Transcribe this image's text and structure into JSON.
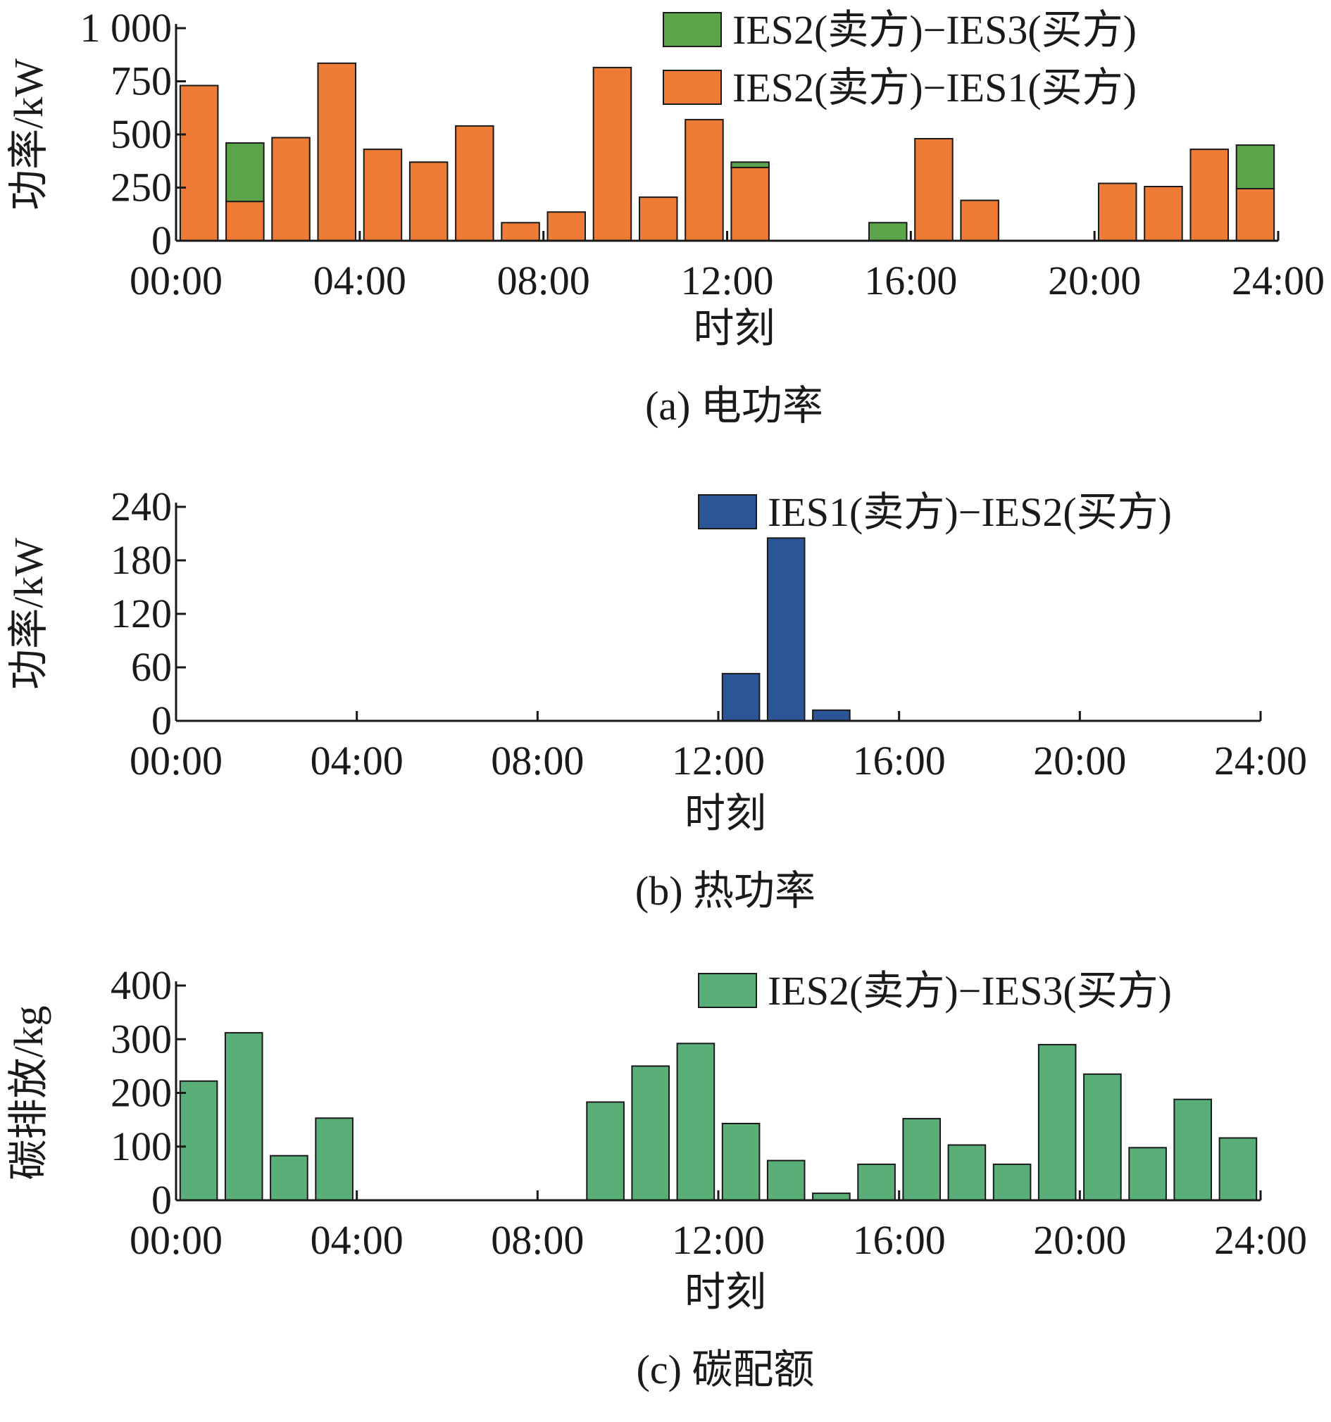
{
  "chart_data": [
    {
      "type": "bar",
      "stacked": true,
      "caption": "(a) 电功率",
      "xlabel": "时刻",
      "ylabel": "功率/kW",
      "ylim": [
        0,
        1000
      ],
      "yticks": [
        0,
        250,
        500,
        750,
        1000
      ],
      "ytick_labels": [
        "0",
        "250",
        "500",
        "750",
        "1 000"
      ],
      "xlim": [
        0,
        24
      ],
      "xticks": [
        "00:00",
        "04:00",
        "08:00",
        "12:00",
        "16:00",
        "20:00",
        "24:00"
      ],
      "legend": "top-right",
      "grid": false,
      "x": [
        1,
        2,
        3,
        4,
        5,
        6,
        7,
        8,
        9,
        10,
        11,
        12,
        13,
        14,
        15,
        16,
        17,
        18,
        19,
        20,
        21,
        22,
        23,
        24
      ],
      "series": [
        {
          "name": "IES2(卖方)−IES1(买方)",
          "color": "#ee7c37",
          "values": [
            730,
            185,
            485,
            835,
            430,
            370,
            540,
            85,
            135,
            815,
            205,
            570,
            345,
            0,
            0,
            0,
            480,
            190,
            0,
            0,
            270,
            255,
            430,
            245
          ]
        },
        {
          "name": "IES2(卖方)−IES3(买方)",
          "color": "#5da54b",
          "values": [
            0,
            275,
            0,
            0,
            0,
            0,
            0,
            0,
            0,
            0,
            0,
            0,
            25,
            0,
            0,
            85,
            0,
            0,
            0,
            0,
            0,
            0,
            0,
            205
          ]
        }
      ],
      "legend_order": [
        1,
        0
      ]
    },
    {
      "type": "bar",
      "caption": "(b) 热功率",
      "xlabel": "时刻",
      "ylabel": "功率/kW",
      "ylim": [
        0,
        240
      ],
      "yticks": [
        0,
        60,
        120,
        180,
        240
      ],
      "ytick_labels": [
        "0",
        "60",
        "120",
        "180",
        "240"
      ],
      "xlim": [
        0,
        24
      ],
      "xticks": [
        "00:00",
        "04:00",
        "08:00",
        "12:00",
        "16:00",
        "20:00",
        "24:00"
      ],
      "legend": "top-right",
      "grid": false,
      "x": [
        1,
        2,
        3,
        4,
        5,
        6,
        7,
        8,
        9,
        10,
        11,
        12,
        13,
        14,
        15,
        16,
        17,
        18,
        19,
        20,
        21,
        22,
        23,
        24
      ],
      "series": [
        {
          "name": "IES1(卖方)−IES2(买方)",
          "color": "#2b5597",
          "values": [
            0,
            0,
            0,
            0,
            0,
            0,
            0,
            0,
            0,
            0,
            0,
            0,
            53,
            205,
            12,
            0,
            0,
            0,
            0,
            0,
            0,
            0,
            0,
            0
          ]
        }
      ],
      "legend_order": [
        0
      ]
    },
    {
      "type": "bar",
      "caption": "(c) 碳配额",
      "xlabel": "时刻",
      "ylabel": "碳排放/kg",
      "ylim": [
        0,
        400
      ],
      "yticks": [
        0,
        100,
        200,
        300,
        400
      ],
      "ytick_labels": [
        "0",
        "100",
        "200",
        "300",
        "400"
      ],
      "xlim": [
        0,
        24
      ],
      "xticks": [
        "00:00",
        "04:00",
        "08:00",
        "12:00",
        "16:00",
        "20:00",
        "24:00"
      ],
      "legend": "top-right",
      "grid": false,
      "x": [
        1,
        2,
        3,
        4,
        5,
        6,
        7,
        8,
        9,
        10,
        11,
        12,
        13,
        14,
        15,
        16,
        17,
        18,
        19,
        20,
        21,
        22,
        23,
        24
      ],
      "series": [
        {
          "name": "IES2(卖方)−IES3(买方)",
          "color": "#5aaf78",
          "values": [
            222,
            312,
            83,
            153,
            0,
            0,
            0,
            0,
            0,
            183,
            250,
            292,
            143,
            74,
            13,
            67,
            152,
            103,
            67,
            290,
            235,
            98,
            188,
            116
          ]
        }
      ],
      "legend_order": [
        0
      ]
    }
  ]
}
